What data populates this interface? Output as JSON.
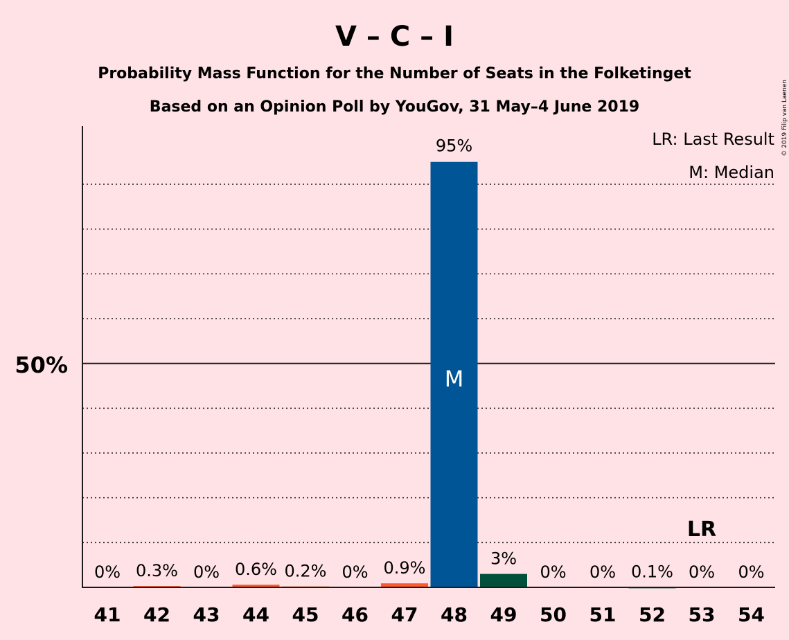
{
  "chart_data": {
    "type": "bar",
    "title": "V – C – I",
    "subtitle_1": "Probability Mass Function for the Number of Seats in the Folketinget",
    "subtitle_2": "Based on an Opinion Poll by YouGov, 31 May–4 June 2019",
    "copyright": "© 2019 Filip van Laenen",
    "legend": [
      "LR: Last Result",
      "M: Median"
    ],
    "legend_position": "top-right",
    "categories": [
      "41",
      "42",
      "43",
      "44",
      "45",
      "46",
      "47",
      "48",
      "49",
      "50",
      "51",
      "52",
      "53",
      "54"
    ],
    "values": [
      0,
      0.3,
      0,
      0.6,
      0.2,
      0,
      0.9,
      95,
      3,
      0,
      0,
      0.1,
      0,
      0
    ],
    "labels": [
      "0%",
      "0.3%",
      "0%",
      "0.6%",
      "0.2%",
      "0%",
      "0.9%",
      "95%",
      "3%",
      "0%",
      "0%",
      "0.1%",
      "0%",
      "0%"
    ],
    "bar_colors": [
      "#ff5a2b",
      "#ff5a2b",
      "#ff5a2b",
      "#ff5a2b",
      "#ff5a2b",
      "#ff5a2b",
      "#ff5a2b",
      "#005596",
      "#00503c",
      "#00503c",
      "#00503c",
      "#00503c",
      "#00503c",
      "#00503c"
    ],
    "median_category": "48",
    "median_marker": "M",
    "last_result_category": "53",
    "last_result_marker": "LR",
    "ylim": [
      0,
      103
    ],
    "y_tick_label": "50%",
    "y_tick_value": 50,
    "gridlines": "dotted every 10%"
  }
}
